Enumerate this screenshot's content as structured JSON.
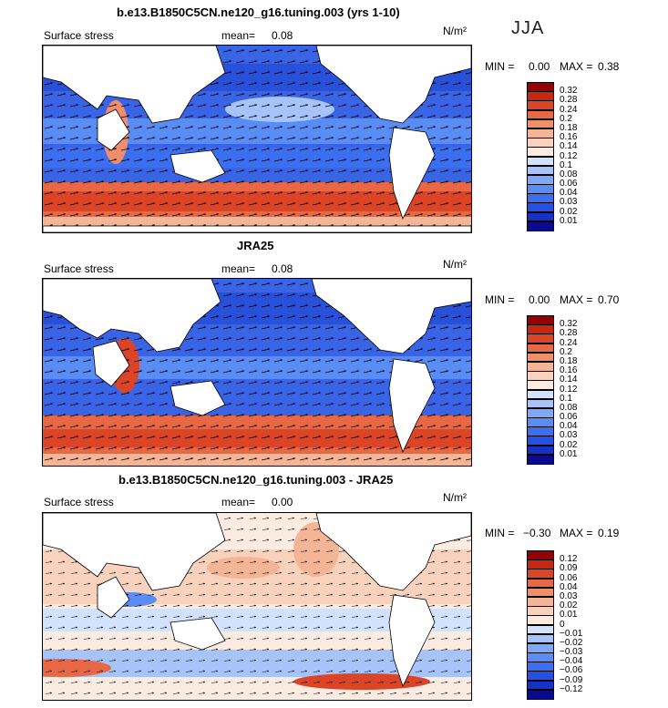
{
  "season": "JJA",
  "panels": [
    {
      "title": "b.e13.B1850C5CN.ne120_g16.tuning.003 (yrs 1-10)",
      "field_label": "Surface stress",
      "mean_label": "mean=",
      "mean_value": "0.08",
      "units": "N/m²",
      "min_label": "MIN =",
      "min_value": "0.00",
      "max_label": "MAX =",
      "max_value": "0.38",
      "colorbar": {
        "colors": [
          "#0a0a8c",
          "#1432c8",
          "#2450e6",
          "#3c6ef0",
          "#5a8cf5",
          "#7ea8f8",
          "#a6c4fa",
          "#d2e2fc",
          "#fcebe0",
          "#f8d2bc",
          "#f4b496",
          "#f08e6c",
          "#e86846",
          "#dc4428",
          "#c82812",
          "#960000"
        ],
        "ticks": [
          "0.32",
          "0.28",
          "0.24",
          "0.2",
          "0.18",
          "0.16",
          "0.14",
          "0.12",
          "0.1",
          "0.08",
          "0.06",
          "0.04",
          "0.03",
          "0.02",
          "0.01"
        ]
      }
    },
    {
      "title": "JRA25",
      "field_label": "Surface stress",
      "mean_label": "mean=",
      "mean_value": "0.08",
      "units": "N/m²",
      "min_label": "MIN =",
      "min_value": "0.00",
      "max_label": "MAX =",
      "max_value": "0.70",
      "colorbar": {
        "colors": [
          "#0a0a8c",
          "#1432c8",
          "#2450e6",
          "#3c6ef0",
          "#5a8cf5",
          "#7ea8f8",
          "#a6c4fa",
          "#d2e2fc",
          "#fcebe0",
          "#f8d2bc",
          "#f4b496",
          "#f08e6c",
          "#e86846",
          "#dc4428",
          "#c82812",
          "#960000"
        ],
        "ticks": [
          "0.32",
          "0.28",
          "0.24",
          "0.2",
          "0.18",
          "0.16",
          "0.14",
          "0.12",
          "0.1",
          "0.08",
          "0.06",
          "0.04",
          "0.03",
          "0.02",
          "0.01"
        ]
      }
    },
    {
      "title": "b.e13.B1850C5CN.ne120_g16.tuning.003 - JRA25",
      "field_label": "Surface stress",
      "mean_label": "mean=",
      "mean_value": "0.00",
      "units": "N/m²",
      "min_label": "MIN =",
      "min_value": "−0.30",
      "max_label": "MAX =",
      "max_value": "0.19",
      "colorbar": {
        "colors": [
          "#0a0a8c",
          "#1432c8",
          "#2450e6",
          "#3c6ef0",
          "#5a8cf5",
          "#7ea8f8",
          "#a6c4fa",
          "#d2e2fc",
          "#fcebe0",
          "#f8d2bc",
          "#f4b496",
          "#f08e6c",
          "#e86846",
          "#dc4428",
          "#c82812",
          "#960000"
        ],
        "ticks": [
          "0.12",
          "0.09",
          "0.06",
          "0.04",
          "0.03",
          "0.02",
          "0.01",
          "0",
          "−0.01",
          "−0.02",
          "−0.03",
          "−0.04",
          "−0.06",
          "−0.09",
          "−0.12"
        ]
      }
    }
  ],
  "chart_data": [
    {
      "type": "heatmap",
      "title": "b.e13.B1850C5CN.ne120_g16.tuning.003 (yrs 1-10)",
      "variable": "Surface stress",
      "units": "N/m²",
      "season": "JJA",
      "mean": 0.08,
      "min": 0.0,
      "max": 0.38,
      "contour_levels": [
        0.01,
        0.02,
        0.03,
        0.04,
        0.06,
        0.08,
        0.1,
        0.12,
        0.14,
        0.16,
        0.18,
        0.2,
        0.24,
        0.28,
        0.32
      ]
    },
    {
      "type": "heatmap",
      "title": "JRA25",
      "variable": "Surface stress",
      "units": "N/m²",
      "season": "JJA",
      "mean": 0.08,
      "min": 0.0,
      "max": 0.7,
      "contour_levels": [
        0.01,
        0.02,
        0.03,
        0.04,
        0.06,
        0.08,
        0.1,
        0.12,
        0.14,
        0.16,
        0.18,
        0.2,
        0.24,
        0.28,
        0.32
      ]
    },
    {
      "type": "heatmap",
      "title": "b.e13.B1850C5CN.ne120_g16.tuning.003 - JRA25",
      "variable": "Surface stress",
      "units": "N/m²",
      "season": "JJA",
      "mean": 0.0,
      "min": -0.3,
      "max": 0.19,
      "contour_levels": [
        -0.12,
        -0.09,
        -0.06,
        -0.04,
        -0.03,
        -0.02,
        -0.01,
        0,
        0.01,
        0.02,
        0.03,
        0.04,
        0.06,
        0.09,
        0.12
      ]
    }
  ]
}
